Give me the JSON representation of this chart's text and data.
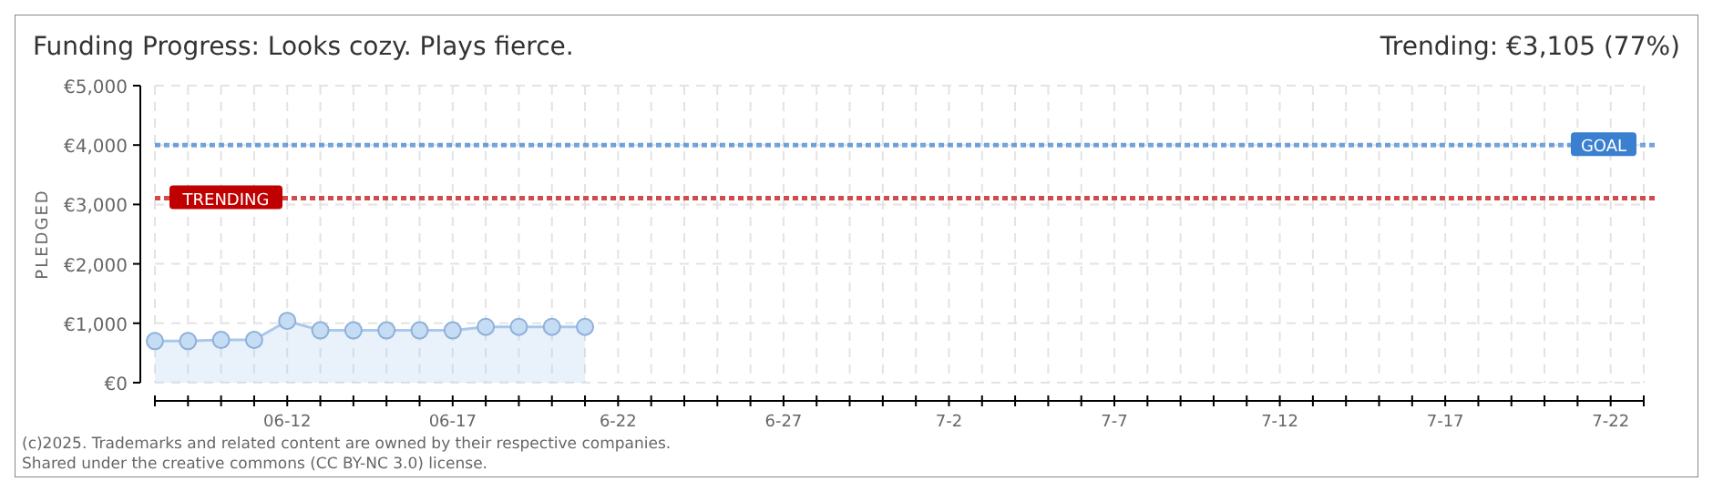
{
  "chart_data": {
    "type": "area",
    "title": "Funding Progress: Looks cozy. Plays fierce.",
    "subtitle": "Trending:  €3,105 (77%)",
    "ylabel": "PLEDGED",
    "x": [
      "2025-06-08",
      "2025-06-09",
      "2025-06-10",
      "2025-06-11",
      "2025-06-12",
      "2025-06-13",
      "2025-06-14",
      "2025-06-15",
      "2025-06-16",
      "2025-06-17",
      "2025-06-18",
      "2025-06-19",
      "2025-06-20",
      "2025-06-21"
    ],
    "series": [
      {
        "color": "#a9c8ec",
        "values": [
          700,
          700,
          720,
          720,
          1040,
          880,
          880,
          880,
          880,
          880,
          940,
          940,
          940,
          940
        ]
      }
    ],
    "marker": "circle",
    "grid": true,
    "xlim": [
      "2025-06-08",
      "2025-07-23"
    ],
    "xticks": [
      {
        "value": "2025-06-12",
        "label": "06-12"
      },
      {
        "value": "2025-06-17",
        "label": "06-17"
      },
      {
        "value": "2025-06-22",
        "label": "6-22"
      },
      {
        "value": "2025-06-27",
        "label": "6-27"
      },
      {
        "value": "2025-07-02",
        "label": "7-2"
      },
      {
        "value": "2025-07-07",
        "label": "7-7"
      },
      {
        "value": "2025-07-12",
        "label": "7-12"
      },
      {
        "value": "2025-07-17",
        "label": "7-17"
      },
      {
        "value": "2025-07-22",
        "label": "7-22"
      }
    ],
    "ylim": [
      0,
      5000
    ],
    "yticks": [
      {
        "value": 0,
        "label": "€0"
      },
      {
        "value": 1000,
        "label": "€1,000"
      },
      {
        "value": 2000,
        "label": "€2,000"
      },
      {
        "value": 3000,
        "label": "€3,000"
      },
      {
        "value": 4000,
        "label": "€4,000"
      },
      {
        "value": 5000,
        "label": "€5,000"
      }
    ],
    "ref_lines": [
      {
        "axis": "y",
        "value": 4000,
        "label": "GOAL",
        "color": "#3a7fd0",
        "line_style": "dotted"
      },
      {
        "axis": "y",
        "value": 3105,
        "label": "TRENDING",
        "color": "#c00000",
        "line_style": "dotted"
      }
    ],
    "annotations": [
      "(c)2025. Trademarks and related content are owned by their respective companies.",
      "Shared under the creative commons (CC BY-NC 3.0) license."
    ]
  }
}
